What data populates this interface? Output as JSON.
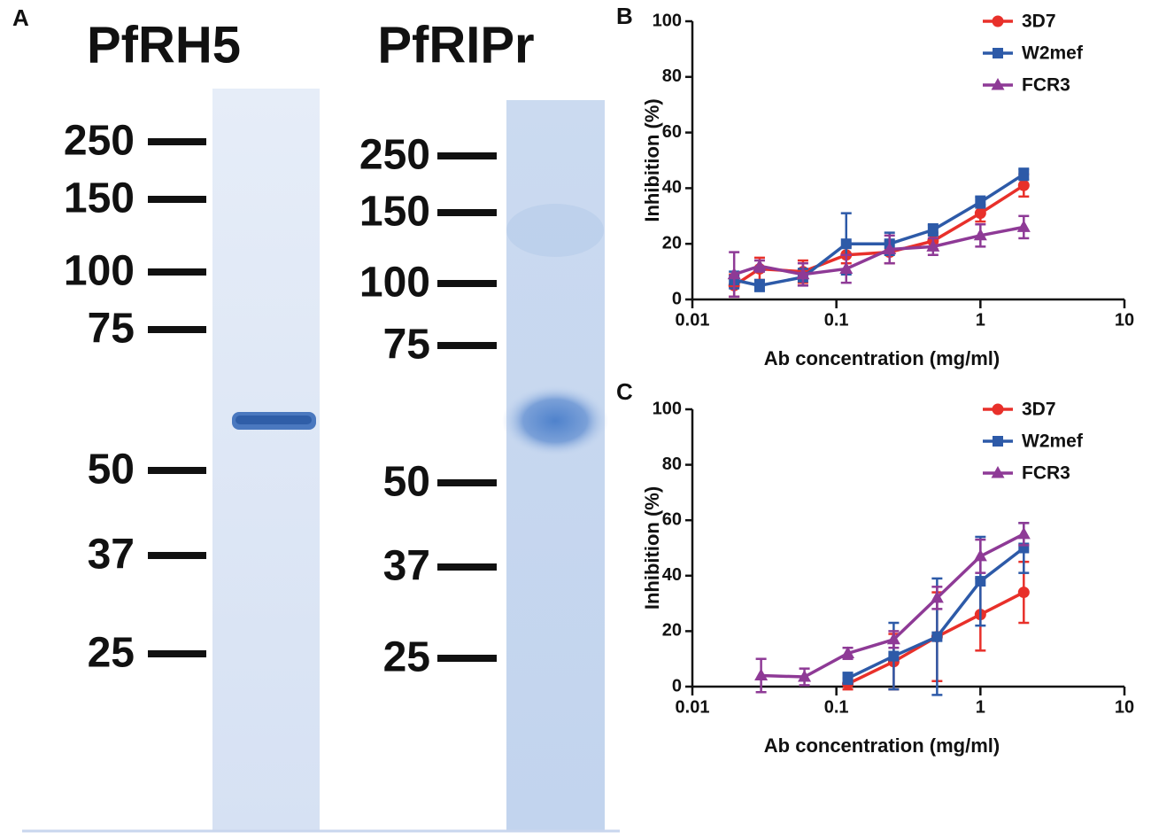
{
  "figure": {
    "panel_labels": [
      "A",
      "B",
      "C"
    ]
  },
  "gel": {
    "lanes": [
      {
        "title": "PfRH5",
        "markers": [
          250,
          150,
          100,
          75,
          50,
          37,
          25
        ]
      },
      {
        "title": "PfRIPr",
        "markers": [
          250,
          150,
          100,
          75,
          50,
          37,
          25
        ]
      }
    ]
  },
  "chart_data": [
    {
      "type": "line",
      "xlabel": "Ab concentration (mg/ml)",
      "ylabel": "Inhibition (%)",
      "xscale": "log",
      "xlim": [
        0.01,
        10
      ],
      "xticks": [
        0.01,
        0.1,
        1,
        10
      ],
      "ylim": [
        0,
        100
      ],
      "yticks": [
        0,
        20,
        40,
        60,
        80,
        100
      ],
      "legend": "upper right",
      "series": [
        {
          "name": "3D7",
          "color": "#e8302a",
          "marker": "circle",
          "x": [
            0.0195,
            0.0293,
            0.0586,
            0.117,
            0.234,
            0.469,
            1,
            2
          ],
          "values": [
            5,
            11,
            10,
            16,
            17,
            21,
            31,
            41
          ],
          "errors": [
            4,
            4,
            4,
            3,
            4,
            3,
            3,
            4
          ]
        },
        {
          "name": "W2mef",
          "color": "#2d5aa8",
          "marker": "square",
          "x": [
            0.0195,
            0.0293,
            0.0586,
            0.117,
            0.234,
            0.469,
            1,
            2
          ],
          "values": [
            7,
            5,
            8,
            20,
            20,
            25,
            35,
            45
          ],
          "errors": [
            3,
            2,
            3,
            11,
            4,
            2,
            2,
            2
          ]
        },
        {
          "name": "FCR3",
          "color": "#8e3a96",
          "marker": "triangle",
          "x": [
            0.0195,
            0.0293,
            0.0586,
            0.117,
            0.234,
            0.469,
            1,
            2
          ],
          "values": [
            9,
            12,
            9,
            11,
            18,
            19,
            23,
            26
          ],
          "errors": [
            8,
            2,
            4,
            5,
            5,
            3,
            4,
            4
          ]
        }
      ]
    },
    {
      "type": "line",
      "xlabel": "Ab concentration (mg/ml)",
      "ylabel": "Inhibition (%)",
      "xscale": "log",
      "xlim": [
        0.01,
        10
      ],
      "xticks": [
        0.01,
        0.1,
        1,
        10
      ],
      "ylim": [
        0,
        100
      ],
      "yticks": [
        0,
        20,
        40,
        60,
        80,
        100
      ],
      "legend": "upper right",
      "series": [
        {
          "name": "3D7",
          "color": "#e8302a",
          "marker": "circle",
          "x": [
            0.12,
            0.25,
            0.5,
            1,
            2
          ],
          "values": [
            1,
            9,
            18,
            26,
            34
          ],
          "errors": [
            2,
            10,
            16,
            13,
            11
          ]
        },
        {
          "name": "W2mef",
          "color": "#2d5aa8",
          "marker": "square",
          "x": [
            0.12,
            0.25,
            0.5,
            1,
            2
          ],
          "values": [
            3,
            11,
            18,
            38,
            50
          ],
          "errors": [
            2,
            12,
            21,
            16,
            9
          ]
        },
        {
          "name": "FCR3",
          "color": "#8e3a96",
          "marker": "triangle",
          "x": [
            0.03,
            0.06,
            0.12,
            0.25,
            0.5,
            1,
            2
          ],
          "values": [
            4,
            3.5,
            12,
            17,
            32,
            47,
            55
          ],
          "errors": [
            6,
            3,
            2,
            3,
            4,
            6,
            4
          ]
        }
      ]
    }
  ]
}
